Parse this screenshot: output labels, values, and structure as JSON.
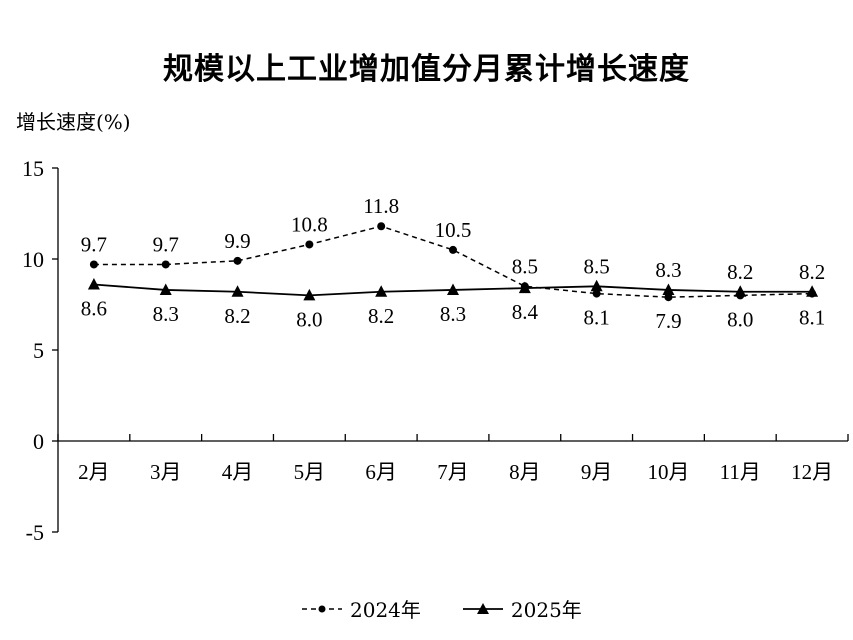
{
  "chart_data": {
    "type": "line",
    "title": "规模以上工业增加值分月累计增长速度",
    "ylabel": "增长速度(%)",
    "xlabel": "",
    "categories": [
      "2月",
      "3月",
      "4月",
      "5月",
      "6月",
      "7月",
      "8月",
      "9月",
      "10月",
      "11月",
      "12月"
    ],
    "ylim": [
      -5,
      15
    ],
    "yticks": [
      15,
      10,
      5,
      0,
      -5
    ],
    "grid": false,
    "legend_position": "bottom",
    "series": [
      {
        "name": "2024年",
        "style": "dashed",
        "marker": "circle",
        "values": [
          9.7,
          9.7,
          9.9,
          10.8,
          11.8,
          10.5,
          8.5,
          8.1,
          7.9,
          8.0,
          8.1
        ],
        "labels": [
          "9.7",
          "9.7",
          "9.9",
          "10.8",
          "11.8",
          "10.5",
          "8.5",
          "8.1",
          "7.9",
          "8.0",
          "8.1"
        ]
      },
      {
        "name": "2025年",
        "style": "solid",
        "marker": "triangle",
        "values": [
          8.6,
          8.3,
          8.2,
          8.0,
          8.2,
          8.3,
          8.4,
          8.5,
          8.3,
          8.2,
          8.2
        ],
        "labels": [
          "8.6",
          "8.3",
          "8.2",
          "8.0",
          "8.2",
          "8.3",
          "8.4",
          "8.5",
          "8.3",
          "8.2",
          "8.2"
        ]
      }
    ]
  }
}
